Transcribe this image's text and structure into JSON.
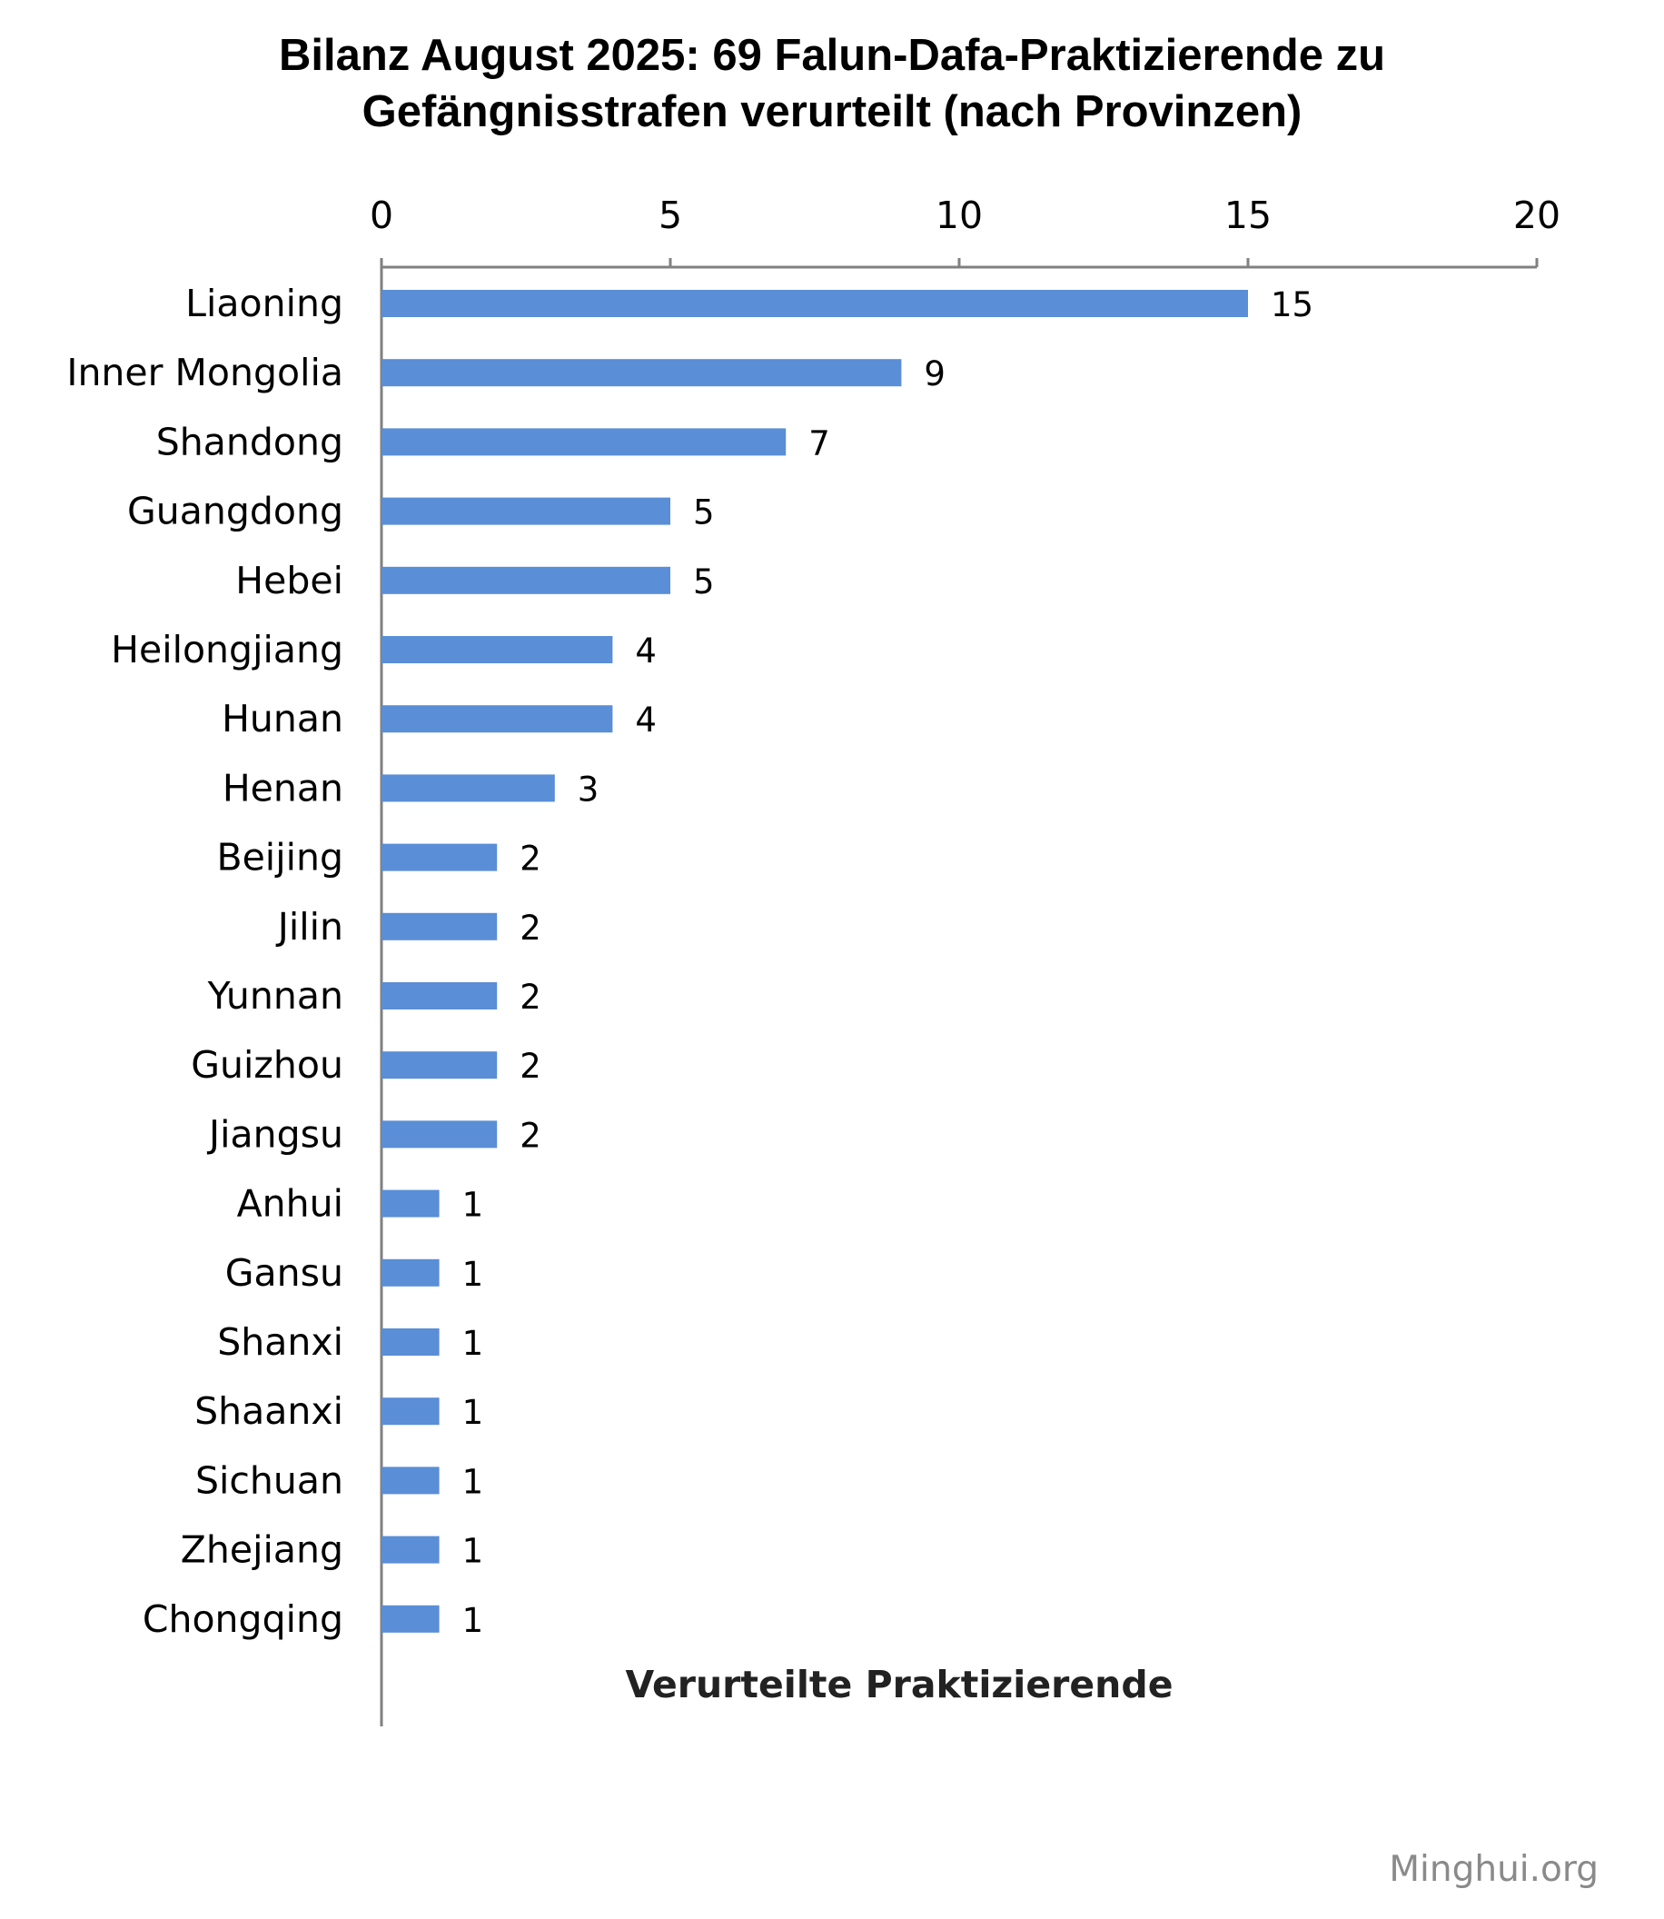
{
  "chart_data": {
    "type": "bar",
    "orientation": "horizontal",
    "title": [
      "Bilanz August 2025: 69 Falun-Dafa-Praktizierende zu",
      "Gefängnisstrafen verurteilt  (nach Provinzen)"
    ],
    "xlabel": "Verurteilte Praktizierende",
    "ylabel": "",
    "xlim": [
      0,
      20
    ],
    "xticks": [
      0,
      5,
      10,
      15,
      20
    ],
    "x_axis_position": "top",
    "grid": false,
    "categories": [
      "Liaoning",
      "Inner Mongolia",
      "Shandong",
      "Guangdong",
      "Hebei",
      "Heilongjiang",
      "Hunan",
      "Henan",
      "Beijing",
      "Jilin",
      "Yunnan",
      "Guizhou",
      "Jiangsu",
      "Anhui",
      "Gansu",
      "Shanxi",
      "Shaanxi",
      "Sichuan",
      "Zhejiang",
      "Chongqing"
    ],
    "values": [
      15,
      9,
      7,
      5,
      5,
      4,
      4,
      3,
      2,
      2,
      2,
      2,
      2,
      1,
      1,
      1,
      1,
      1,
      1,
      1
    ],
    "data_labels": true,
    "bar_color": "#5a8ed6",
    "axis_color": "#808080"
  },
  "source": "Minghui.org"
}
